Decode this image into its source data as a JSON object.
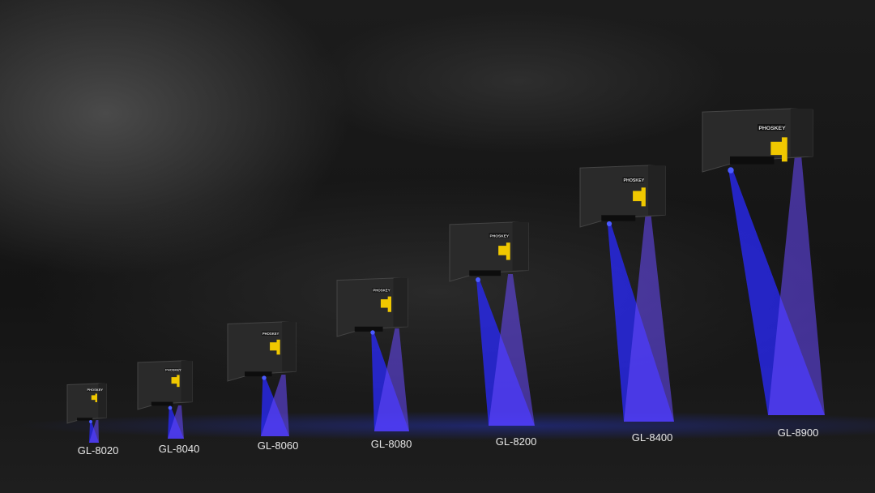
{
  "brand_logo": "PHOSKEY",
  "colors": {
    "beam": "#2a2aff",
    "device_body": "#2b2b2b",
    "label": "#e8e8e8",
    "indicator": "#f0c800"
  },
  "devices": [
    {
      "model": "GL-8020"
    },
    {
      "model": "GL-8040"
    },
    {
      "model": "GL-8060"
    },
    {
      "model": "GL-8080"
    },
    {
      "model": "GL-8200"
    },
    {
      "model": "GL-8400"
    },
    {
      "model": "GL-8900"
    }
  ]
}
